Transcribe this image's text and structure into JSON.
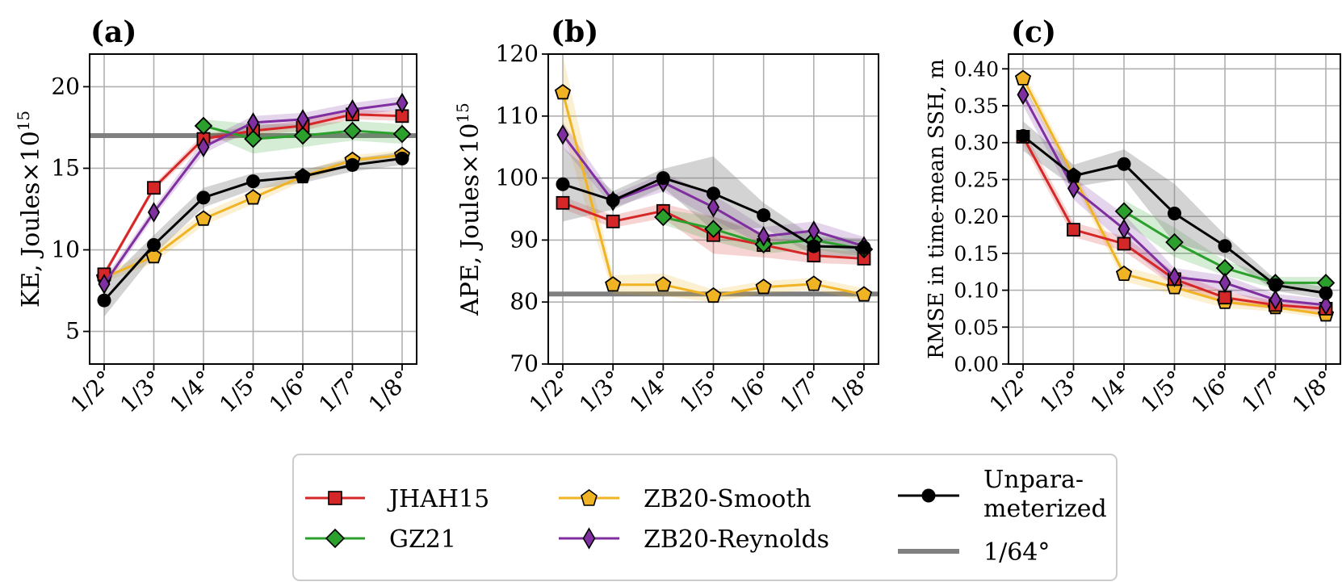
{
  "chart_data": [
    {
      "panel": "(a)",
      "type": "line",
      "ylabel": "KE, Joules",
      "ylabel_exp": "15",
      "categories": [
        "1/2°",
        "1/3°",
        "1/4°",
        "1/5°",
        "1/6°",
        "1/7°",
        "1/8°"
      ],
      "ylim": [
        3,
        22
      ],
      "yticks": [
        5,
        10,
        15,
        20
      ],
      "ytick_labels": [
        "5",
        "10",
        "15",
        "20"
      ],
      "grid": true,
      "reference_line": {
        "name": "1/64°",
        "value": 17.0
      },
      "series": [
        {
          "key": "jhah15",
          "name": "JHAH15",
          "values": [
            8.5,
            13.8,
            16.8,
            17.3,
            17.6,
            18.3,
            18.2
          ],
          "band": [
            0.2,
            0.2,
            0.3,
            0.3,
            0.3,
            0.3,
            0.3
          ]
        },
        {
          "key": "gz21",
          "name": "GZ21",
          "values": [
            null,
            null,
            17.6,
            16.8,
            17.0,
            17.3,
            17.1
          ],
          "band": [
            0,
            0,
            0.4,
            0.9,
            0.7,
            0.6,
            0.6
          ]
        },
        {
          "key": "zb20smooth",
          "name": "ZB20-Smooth",
          "values": [
            8.3,
            9.6,
            11.9,
            13.2,
            14.5,
            15.5,
            15.8
          ],
          "band": [
            0.3,
            0.4,
            0.4,
            0.4,
            0.3,
            0.3,
            0.3
          ]
        },
        {
          "key": "zb20reynolds",
          "name": "ZB20-Reynolds",
          "values": [
            7.9,
            12.3,
            16.3,
            17.8,
            18.0,
            18.6,
            19.0
          ],
          "band": [
            0.3,
            0.3,
            0.4,
            0.4,
            0.4,
            0.4,
            0.4
          ]
        },
        {
          "key": "unparam",
          "name": "Unparameterized",
          "values": [
            6.9,
            10.3,
            13.2,
            14.2,
            14.5,
            15.2,
            15.6
          ],
          "band": [
            1.0,
            0.6,
            0.6,
            0.5,
            0.4,
            0.4,
            0.4
          ]
        }
      ]
    },
    {
      "panel": "(b)",
      "type": "line",
      "ylabel": "APE, Joules",
      "ylabel_exp": "15",
      "categories": [
        "1/2°",
        "1/3°",
        "1/4°",
        "1/5°",
        "1/6°",
        "1/7°",
        "1/8°"
      ],
      "ylim": [
        70,
        120
      ],
      "yticks": [
        70,
        80,
        90,
        100,
        110,
        120
      ],
      "ytick_labels": [
        "70",
        "80",
        "90",
        "100",
        "110",
        "120"
      ],
      "grid": true,
      "reference_line": {
        "name": "1/64°",
        "value": 81.3
      },
      "series": [
        {
          "key": "jhah15",
          "name": "JHAH15",
          "values": [
            96.0,
            93.0,
            94.7,
            90.8,
            89.2,
            87.5,
            87.0
          ],
          "band": [
            1.0,
            1.0,
            1.2,
            3.0,
            2.0,
            1.2,
            1.0
          ]
        },
        {
          "key": "gz21",
          "name": "GZ21",
          "values": [
            null,
            null,
            93.7,
            91.8,
            89.3,
            90.0,
            88.5
          ],
          "band": [
            0,
            0,
            1.2,
            2.0,
            1.5,
            1.5,
            1.2
          ]
        },
        {
          "key": "zb20smooth",
          "name": "ZB20-Smooth",
          "values": [
            113.8,
            82.8,
            82.8,
            81.0,
            82.4,
            82.9,
            81.2
          ],
          "band": [
            6.0,
            1.5,
            1.8,
            1.0,
            1.0,
            1.0,
            1.0
          ]
        },
        {
          "key": "zb20reynolds",
          "name": "ZB20-Reynolds",
          "values": [
            107.0,
            96.3,
            99.3,
            95.3,
            90.6,
            91.5,
            89.0
          ],
          "band": [
            2.0,
            1.0,
            1.5,
            2.0,
            1.5,
            1.5,
            1.5
          ]
        },
        {
          "key": "unparam",
          "name": "Unparameterized",
          "values": [
            99.0,
            96.4,
            100.0,
            97.5,
            94.0,
            89.0,
            88.8
          ],
          "band": [
            6.0,
            1.5,
            1.5,
            6.0,
            2.0,
            1.5,
            1.5
          ]
        }
      ]
    },
    {
      "panel": "(c)",
      "type": "line",
      "ylabel": "RMSE in time-mean SSH, m",
      "ylabel_exp": "",
      "categories": [
        "1/2°",
        "1/3°",
        "1/4°",
        "1/5°",
        "1/6°",
        "1/7°",
        "1/8°"
      ],
      "ylim": [
        0.0,
        0.42
      ],
      "yticks": [
        0.0,
        0.05,
        0.1,
        0.15,
        0.2,
        0.25,
        0.3,
        0.35,
        0.4
      ],
      "ytick_labels": [
        "0.00",
        "0.05",
        "0.10",
        "0.15",
        "0.20",
        "0.25",
        "0.30",
        "0.35",
        "0.40"
      ],
      "grid": true,
      "reference_line": null,
      "series": [
        {
          "key": "jhah15",
          "name": "JHAH15",
          "values": [
            0.308,
            0.182,
            0.163,
            0.115,
            0.09,
            0.08,
            0.075
          ],
          "band": [
            0.01,
            0.01,
            0.01,
            0.01,
            0.008,
            0.006,
            0.005
          ]
        },
        {
          "key": "gz21",
          "name": "GZ21",
          "values": [
            null,
            null,
            0.207,
            0.165,
            0.13,
            0.11,
            0.11
          ],
          "band": [
            0,
            0,
            0.015,
            0.02,
            0.01,
            0.008,
            0.008
          ]
        },
        {
          "key": "zb20smooth",
          "name": "ZB20-Smooth",
          "values": [
            0.387,
            0.255,
            0.122,
            0.104,
            0.084,
            0.077,
            0.067
          ],
          "band": [
            0.01,
            0.01,
            0.01,
            0.01,
            0.008,
            0.006,
            0.005
          ]
        },
        {
          "key": "zb20reynolds",
          "name": "ZB20-Reynolds",
          "values": [
            0.365,
            0.238,
            0.183,
            0.118,
            0.11,
            0.087,
            0.08
          ],
          "band": [
            0.015,
            0.015,
            0.02,
            0.012,
            0.01,
            0.008,
            0.008
          ]
        },
        {
          "key": "unparam",
          "name": "Unparameterized",
          "values": [
            0.309,
            0.255,
            0.271,
            0.204,
            0.16,
            0.107,
            0.096
          ],
          "band": [
            0.02,
            0.015,
            0.02,
            0.04,
            0.015,
            0.008,
            0.008
          ]
        }
      ]
    }
  ],
  "styles": {
    "jhah15": {
      "color": "#d62728",
      "marker": "square"
    },
    "gz21": {
      "color": "#2ca02c",
      "marker": "diamond"
    },
    "zb20smooth": {
      "color": "#f0b323",
      "marker": "pentagon"
    },
    "zb20reynolds": {
      "color": "#7f2f9f",
      "marker": "thin-diamond"
    },
    "unparam": {
      "color": "#000000",
      "marker": "circle"
    },
    "reference": {
      "color": "#808080"
    }
  },
  "legend": {
    "entries": [
      {
        "key": "jhah15",
        "label": "JHAH15"
      },
      {
        "key": "gz21",
        "label": "GZ21"
      },
      {
        "key": "zb20smooth",
        "label": "ZB20-Smooth"
      },
      {
        "key": "zb20reynolds",
        "label": "ZB20-Reynolds"
      },
      {
        "key": "unparam",
        "label_line1": "Unpara-",
        "label_line2": "meterized"
      },
      {
        "key": "reference",
        "label": "1/64°"
      }
    ]
  },
  "times_symbol": "×10"
}
